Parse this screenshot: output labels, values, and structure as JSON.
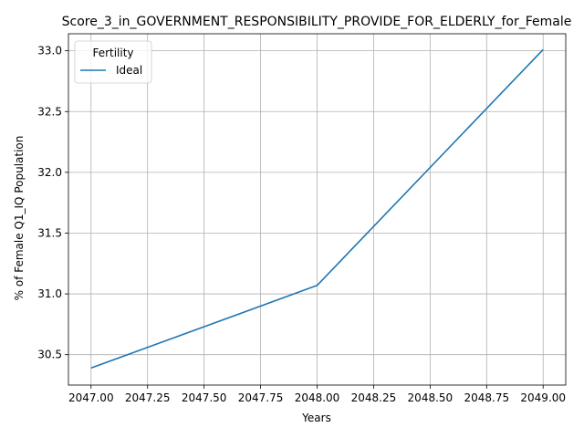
{
  "chart_data": {
    "type": "line",
    "title": "Score_3_in_GOVERNMENT_RESPONSIBILITY_PROVIDE_FOR_ELDERLY_for_Female",
    "xlabel": "Years",
    "ylabel": "% of Female Q1_IQ Population",
    "xlim": [
      2046.9,
      2049.1
    ],
    "ylim": [
      30.25,
      33.14
    ],
    "xticks": [
      2047.0,
      2047.25,
      2047.5,
      2047.75,
      2048.0,
      2048.25,
      2048.5,
      2048.75,
      2049.0
    ],
    "xtick_labels": [
      "2047.00",
      "2047.25",
      "2047.50",
      "2047.75",
      "2048.00",
      "2048.25",
      "2048.50",
      "2048.75",
      "2049.00"
    ],
    "yticks": [
      30.5,
      31.0,
      31.5,
      32.0,
      32.5,
      33.0
    ],
    "ytick_labels": [
      "30.5",
      "31.0",
      "31.5",
      "32.0",
      "32.5",
      "33.0"
    ],
    "grid": true,
    "legend": {
      "title": "Fertility",
      "placement": "top-left"
    },
    "series": [
      {
        "name": "Ideal",
        "color": "#1f77b4",
        "x": [
          2047,
          2048,
          2049
        ],
        "y": [
          30.39,
          31.07,
          33.01
        ]
      }
    ]
  }
}
